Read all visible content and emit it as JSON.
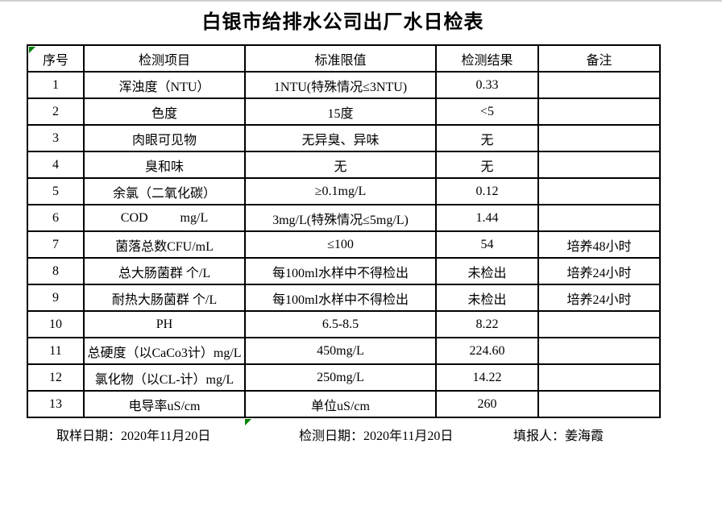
{
  "page": {
    "title": "白银市给排水公司出厂水日检表"
  },
  "table": {
    "headers": [
      "序号",
      "检测项目",
      "标准限值",
      "检测结果",
      "备注"
    ],
    "rows": [
      [
        "1",
        "浑浊度（NTU）",
        "1NTU(特殊情况≤3NTU)",
        "0.33",
        ""
      ],
      [
        "2",
        "色度",
        "15度",
        "<5",
        ""
      ],
      [
        "3",
        "肉眼可见物",
        "无异臭、异味",
        "无",
        ""
      ],
      [
        "4",
        "臭和味",
        "无",
        "无",
        ""
      ],
      [
        "5",
        "余氯（二氧化碳）",
        "≥0.1mg/L",
        "0.12",
        ""
      ],
      [
        "6",
        "COD          mg/L",
        "3mg/L(特殊情况≤5mg/L)",
        "1.44",
        ""
      ],
      [
        "7",
        "菌落总数CFU/mL",
        "≤100",
        "54",
        "培养48小时"
      ],
      [
        "8",
        "总大肠菌群 个/L",
        "每100ml水样中不得检出",
        "未检出",
        "培养24小时"
      ],
      [
        "9",
        "耐热大肠菌群 个/L",
        "每100ml水样中不得检出",
        "未检出",
        "培养24小时"
      ],
      [
        "10",
        "PH",
        "6.5-8.5",
        "8.22",
        ""
      ],
      [
        "11",
        "总硬度（以CaCo3计）mg/L",
        "450mg/L",
        "224.60",
        ""
      ],
      [
        "12",
        "氯化物（以CL-计）mg/L",
        "250mg/L",
        "14.22",
        ""
      ],
      [
        "13",
        "电导率uS/cm",
        "单位uS/cm",
        "260",
        ""
      ]
    ]
  },
  "footer": {
    "sampling_date": "取样日期：2020年11月20日",
    "test_date": "检测日期：2020年11月20日",
    "reporter": "填报人：姜海霞"
  },
  "markers": {
    "error_indicator_color": "#008000"
  }
}
